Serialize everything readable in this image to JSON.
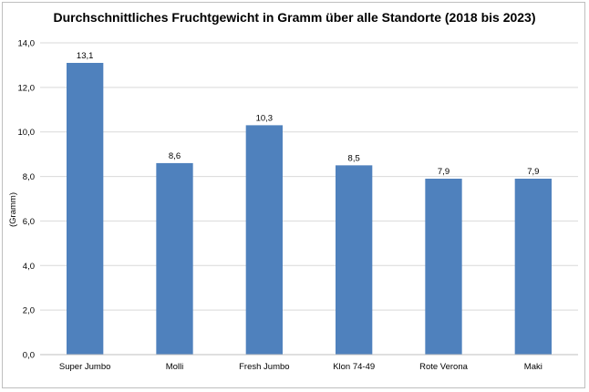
{
  "chart_data": {
    "type": "bar",
    "title": "Durchschnittliches Fruchtgewicht in Gramm über alle Standorte (2018 bis 2023)",
    "ylabel": "(Gramm)",
    "xlabel": "",
    "categories": [
      "Super Jumbo",
      "Molli",
      "Fresh Jumbo",
      "Klon 74-49",
      "Rote Verona",
      "Maki"
    ],
    "values": [
      13.1,
      8.6,
      10.3,
      8.5,
      7.9,
      7.9
    ],
    "data_labels": [
      "13,1",
      "8,6",
      "10,3",
      "8,5",
      "7,9",
      "7,9"
    ],
    "yticks": [
      "0,0",
      "2,0",
      "4,0",
      "6,0",
      "8,0",
      "10,0",
      "12,0",
      "14,0"
    ],
    "ylim": [
      0,
      14
    ],
    "ytick_step": 2,
    "grid": true,
    "legend": "none",
    "bar_color": "#4f81bd",
    "grid_color": "#d9d9d9"
  }
}
